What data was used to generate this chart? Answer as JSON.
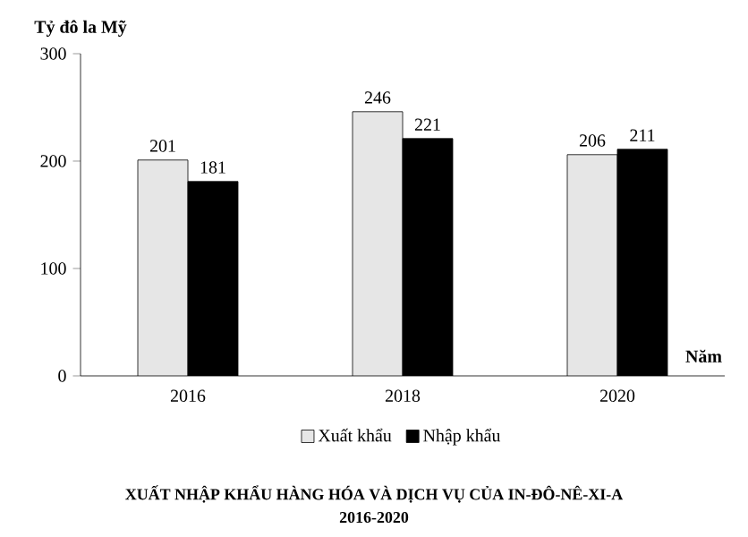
{
  "chart_data": {
    "type": "bar",
    "title": "XUẤT NHẬP KHẨU HÀNG HÓA VÀ DỊCH VỤ CỦA IN-ĐÔ-NÊ-XI-A",
    "subtitle": "2016-2020",
    "ylabel": "Tỷ đô la Mỹ",
    "xlabel": "Năm",
    "categories": [
      "2016",
      "2018",
      "2020"
    ],
    "series": [
      {
        "name": "Xuất khẩu",
        "color": "#e6e6e6",
        "values": [
          201,
          246,
          206
        ]
      },
      {
        "name": "Nhập khẩu",
        "color": "#000000",
        "values": [
          181,
          221,
          211
        ]
      }
    ],
    "ylim": [
      0,
      300
    ],
    "yticks": [
      0,
      100,
      200,
      300
    ],
    "data_labels": true,
    "legend": "bottom"
  }
}
